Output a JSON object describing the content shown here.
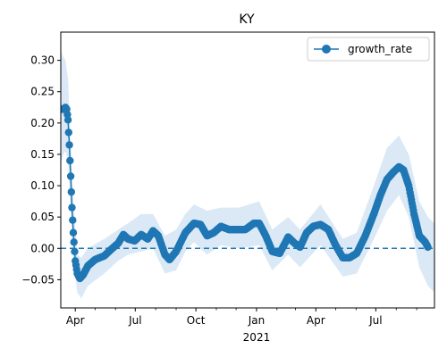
{
  "chart_data": {
    "type": "line",
    "title": "KY",
    "xlabel": "",
    "ylabel": "",
    "x_range": [
      "2020-03-10",
      "2021-09-28"
    ],
    "ylim": [
      -0.095,
      0.345
    ],
    "x_ticks_major": [
      {
        "date": "2020-04-01",
        "label": "Apr"
      },
      {
        "date": "2020-07-01",
        "label": "Jul"
      },
      {
        "date": "2020-10-01",
        "label": "Oct"
      },
      {
        "date": "2021-01-01",
        "label": "Jan"
      },
      {
        "date": "2021-04-01",
        "label": "Apr"
      },
      {
        "date": "2021-07-01",
        "label": "Jul"
      }
    ],
    "x_year_label": {
      "date": "2021-01-01",
      "label": "2021"
    },
    "x_ticks_minor": [
      "2020-05-01",
      "2020-06-01",
      "2020-08-01",
      "2020-09-01",
      "2020-11-01",
      "2020-12-01",
      "2021-02-01",
      "2021-03-01",
      "2021-05-01",
      "2021-06-01",
      "2021-08-01",
      "2021-09-01"
    ],
    "y_ticks": [
      -0.05,
      0.0,
      0.05,
      0.1,
      0.15,
      0.2,
      0.25,
      0.3
    ],
    "y_tick_labels": [
      "−0.05",
      "0.00",
      "0.05",
      "0.10",
      "0.15",
      "0.20",
      "0.25",
      "0.30"
    ],
    "reference_line": {
      "y": 0,
      "style": "dashed"
    },
    "legend": {
      "placement": "top-right",
      "entries": [
        "growth_rate"
      ]
    },
    "grid": false,
    "colors": {
      "series": "#1f77b4",
      "band": "#dbe8f5"
    },
    "series": [
      {
        "name": "growth_rate",
        "marker": "circle",
        "keypoints": [
          [
            "2020-03-10",
            0.222
          ],
          [
            "2020-03-14",
            0.222
          ],
          [
            "2020-03-17",
            0.225
          ],
          [
            "2020-03-19",
            0.222
          ],
          [
            "2020-03-21",
            0.205
          ],
          [
            "2020-03-23",
            0.165
          ],
          [
            "2020-03-25",
            0.115
          ],
          [
            "2020-03-27",
            0.065
          ],
          [
            "2020-03-29",
            0.025
          ],
          [
            "2020-04-01",
            -0.02
          ],
          [
            "2020-04-04",
            -0.04
          ],
          [
            "2020-04-08",
            -0.048
          ],
          [
            "2020-04-13",
            -0.042
          ],
          [
            "2020-04-20",
            -0.028
          ],
          [
            "2020-05-01",
            -0.018
          ],
          [
            "2020-05-15",
            -0.012
          ],
          [
            "2020-05-25",
            -0.002
          ],
          [
            "2020-06-05",
            0.008
          ],
          [
            "2020-06-13",
            0.022
          ],
          [
            "2020-06-20",
            0.015
          ],
          [
            "2020-06-30",
            0.012
          ],
          [
            "2020-07-10",
            0.022
          ],
          [
            "2020-07-20",
            0.015
          ],
          [
            "2020-07-28",
            0.028
          ],
          [
            "2020-08-05",
            0.02
          ],
          [
            "2020-08-15",
            -0.01
          ],
          [
            "2020-08-22",
            -0.018
          ],
          [
            "2020-09-01",
            -0.005
          ],
          [
            "2020-09-15",
            0.025
          ],
          [
            "2020-09-28",
            0.04
          ],
          [
            "2020-10-08",
            0.038
          ],
          [
            "2020-10-18",
            0.02
          ],
          [
            "2020-10-28",
            0.025
          ],
          [
            "2020-11-08",
            0.035
          ],
          [
            "2020-11-20",
            0.03
          ],
          [
            "2020-12-05",
            0.03
          ],
          [
            "2020-12-15",
            0.03
          ],
          [
            "2020-12-28",
            0.04
          ],
          [
            "2021-01-05",
            0.04
          ],
          [
            "2021-01-15",
            0.02
          ],
          [
            "2021-01-25",
            -0.005
          ],
          [
            "2021-02-05",
            -0.008
          ],
          [
            "2021-02-18",
            0.018
          ],
          [
            "2021-02-28",
            0.008
          ],
          [
            "2021-03-08",
            0.002
          ],
          [
            "2021-03-18",
            0.025
          ],
          [
            "2021-03-28",
            0.035
          ],
          [
            "2021-04-08",
            0.038
          ],
          [
            "2021-04-20",
            0.03
          ],
          [
            "2021-05-01",
            0.005
          ],
          [
            "2021-05-12",
            -0.015
          ],
          [
            "2021-05-22",
            -0.015
          ],
          [
            "2021-06-02",
            -0.008
          ],
          [
            "2021-06-15",
            0.02
          ],
          [
            "2021-06-28",
            0.055
          ],
          [
            "2021-07-08",
            0.085
          ],
          [
            "2021-07-18",
            0.11
          ],
          [
            "2021-07-28",
            0.122
          ],
          [
            "2021-08-05",
            0.13
          ],
          [
            "2021-08-12",
            0.125
          ],
          [
            "2021-08-20",
            0.1
          ],
          [
            "2021-08-28",
            0.055
          ],
          [
            "2021-09-05",
            0.02
          ],
          [
            "2021-09-14",
            0.01
          ],
          [
            "2021-09-18",
            0.002
          ]
        ]
      }
    ],
    "band": {
      "name": "uncertainty interval",
      "keypoints": [
        [
          "2020-03-10",
          0.135,
          0.315
        ],
        [
          "2020-03-14",
          0.15,
          0.305
        ],
        [
          "2020-03-17",
          0.155,
          0.3
        ],
        [
          "2020-03-21",
          0.14,
          0.27
        ],
        [
          "2020-03-25",
          0.06,
          0.17
        ],
        [
          "2020-03-29",
          -0.02,
          0.075
        ],
        [
          "2020-04-04",
          -0.07,
          -0.01
        ],
        [
          "2020-04-10",
          -0.08,
          -0.015
        ],
        [
          "2020-04-20",
          -0.06,
          0.0
        ],
        [
          "2020-05-15",
          -0.04,
          0.015
        ],
        [
          "2020-06-05",
          -0.02,
          0.03
        ],
        [
          "2020-06-20",
          -0.01,
          0.04
        ],
        [
          "2020-07-10",
          -0.005,
          0.055
        ],
        [
          "2020-07-28",
          0.0,
          0.055
        ],
        [
          "2020-08-15",
          -0.04,
          0.02
        ],
        [
          "2020-09-01",
          -0.035,
          0.03
        ],
        [
          "2020-09-15",
          -0.005,
          0.055
        ],
        [
          "2020-09-28",
          0.01,
          0.07
        ],
        [
          "2020-10-18",
          -0.01,
          0.06
        ],
        [
          "2020-11-08",
          0.005,
          0.065
        ],
        [
          "2020-12-05",
          0.0,
          0.065
        ],
        [
          "2021-01-05",
          0.005,
          0.075
        ],
        [
          "2021-01-25",
          -0.035,
          0.03
        ],
        [
          "2021-02-18",
          -0.01,
          0.05
        ],
        [
          "2021-03-08",
          -0.03,
          0.03
        ],
        [
          "2021-04-08",
          0.005,
          0.07
        ],
        [
          "2021-05-12",
          -0.045,
          0.015
        ],
        [
          "2021-06-02",
          -0.04,
          0.025
        ],
        [
          "2021-06-28",
          0.015,
          0.1
        ],
        [
          "2021-07-18",
          0.06,
          0.16
        ],
        [
          "2021-08-05",
          0.085,
          0.18
        ],
        [
          "2021-08-20",
          0.05,
          0.15
        ],
        [
          "2021-09-05",
          -0.03,
          0.075
        ],
        [
          "2021-09-18",
          -0.06,
          0.05
        ],
        [
          "2021-09-28",
          -0.07,
          0.04
        ]
      ]
    }
  }
}
